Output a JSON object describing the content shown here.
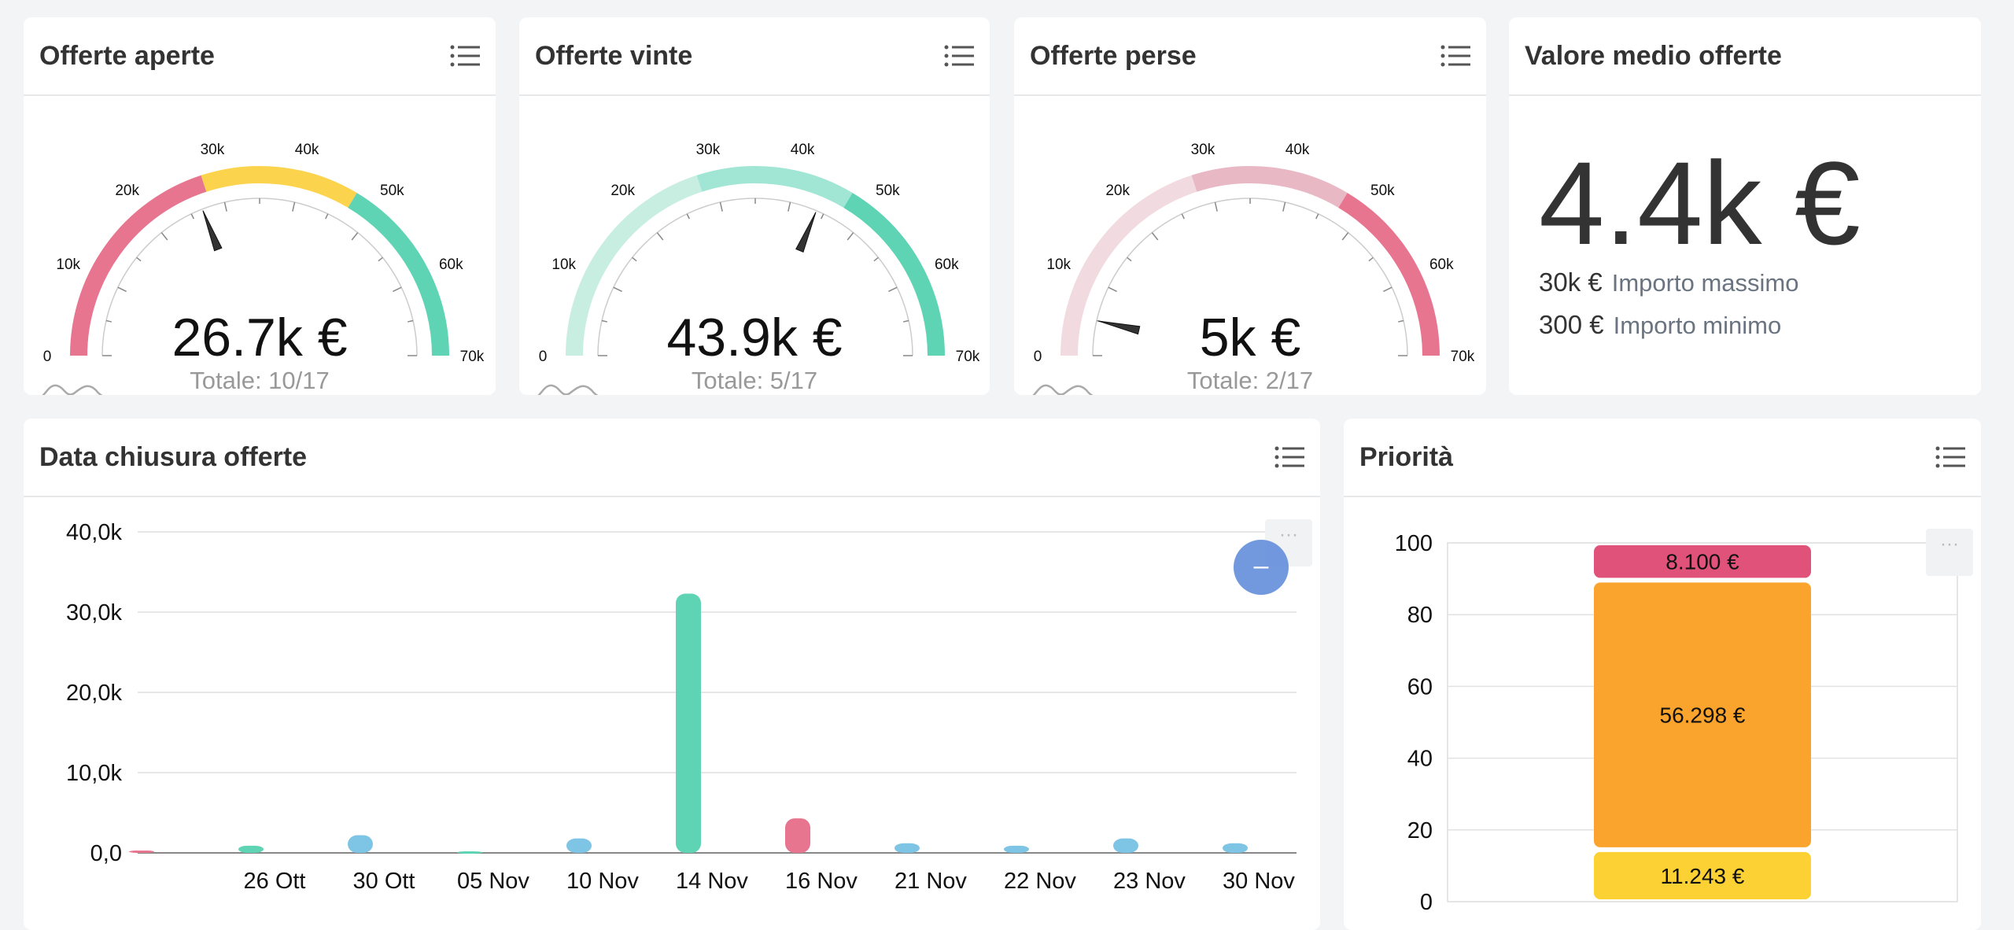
{
  "gauges": [
    {
      "title": "Offerte aperte",
      "value_label": "26.7k €",
      "total_label": "Totale: 10/17",
      "value": 26700,
      "min": 0,
      "max": 70000,
      "ticks": [
        "0",
        "10k",
        "20k",
        "30k",
        "40k",
        "50k",
        "60k",
        "70k"
      ],
      "bands": [
        {
          "from": 0,
          "to": 28000,
          "color": "#e8758f"
        },
        {
          "from": 28000,
          "to": 47000,
          "color": "#fcd34d"
        },
        {
          "from": 47000,
          "to": 70000,
          "color": "#5ed4b4"
        }
      ]
    },
    {
      "title": "Offerte vinte",
      "value_label": "43.9k €",
      "total_label": "Totale: 5/17",
      "value": 43900,
      "min": 0,
      "max": 70000,
      "ticks": [
        "0",
        "10k",
        "20k",
        "30k",
        "40k",
        "50k",
        "60k",
        "70k"
      ],
      "bands": [
        {
          "from": 0,
          "to": 28000,
          "color": "#c8eee2"
        },
        {
          "from": 28000,
          "to": 47000,
          "color": "#a1e6d4"
        },
        {
          "from": 47000,
          "to": 70000,
          "color": "#5ed4b4"
        }
      ]
    },
    {
      "title": "Offerte perse",
      "value_label": "5k €",
      "total_label": "Totale: 2/17",
      "value": 5000,
      "min": 0,
      "max": 70000,
      "ticks": [
        "0",
        "10k",
        "20k",
        "30k",
        "40k",
        "50k",
        "60k",
        "70k"
      ],
      "bands": [
        {
          "from": 0,
          "to": 28000,
          "color": "#f1dbe0"
        },
        {
          "from": 28000,
          "to": 47000,
          "color": "#e9b8c5"
        },
        {
          "from": 47000,
          "to": 70000,
          "color": "#e8758f"
        }
      ]
    }
  ],
  "average": {
    "title": "Valore medio offerte",
    "value": "4.4k €",
    "max_value": "30k €",
    "max_label": "Importo massimo",
    "min_value": "300 €",
    "min_label": "Importo minimo"
  },
  "closing": {
    "title": "Data chiusura offerte",
    "chart_data": {
      "type": "bar",
      "categories": [
        "",
        "26 Ott",
        "30 Ott",
        "05 Nov",
        "10 Nov",
        "14 Nov",
        "16 Nov",
        "21 Nov",
        "22 Nov",
        "23 Nov",
        "30 Nov"
      ],
      "values": [
        300,
        900,
        2200,
        200,
        1800,
        32300,
        4300,
        1200,
        900,
        1800,
        1200
      ],
      "colors": [
        "#e8758f",
        "#5ed4b4",
        "#7ec4e4",
        "#5ed4b4",
        "#7ec4e4",
        "#5ed4b4",
        "#e8758f",
        "#7ec4e4",
        "#7ec4e4",
        "#7ec4e4",
        "#7ec4e4"
      ],
      "yticks": [
        "0,0",
        "10,0k",
        "20,0k",
        "30,0k",
        "40,0k"
      ],
      "ylim": [
        0,
        40000
      ]
    },
    "fab_label": "–"
  },
  "priority": {
    "title": "Priorità",
    "chart_data": {
      "type": "bar",
      "stacked": true,
      "ylim": [
        0,
        100
      ],
      "yticks": [
        "0",
        "20",
        "40",
        "60",
        "80",
        "100"
      ],
      "segments": [
        {
          "label": "11.243 €",
          "percent": 14.5,
          "color": "#fcd133"
        },
        {
          "label": "56.298 €",
          "percent": 75.1,
          "color": "#fba42d"
        },
        {
          "label": "8.100 €",
          "percent": 10.4,
          "color": "#e0527a"
        }
      ]
    }
  }
}
